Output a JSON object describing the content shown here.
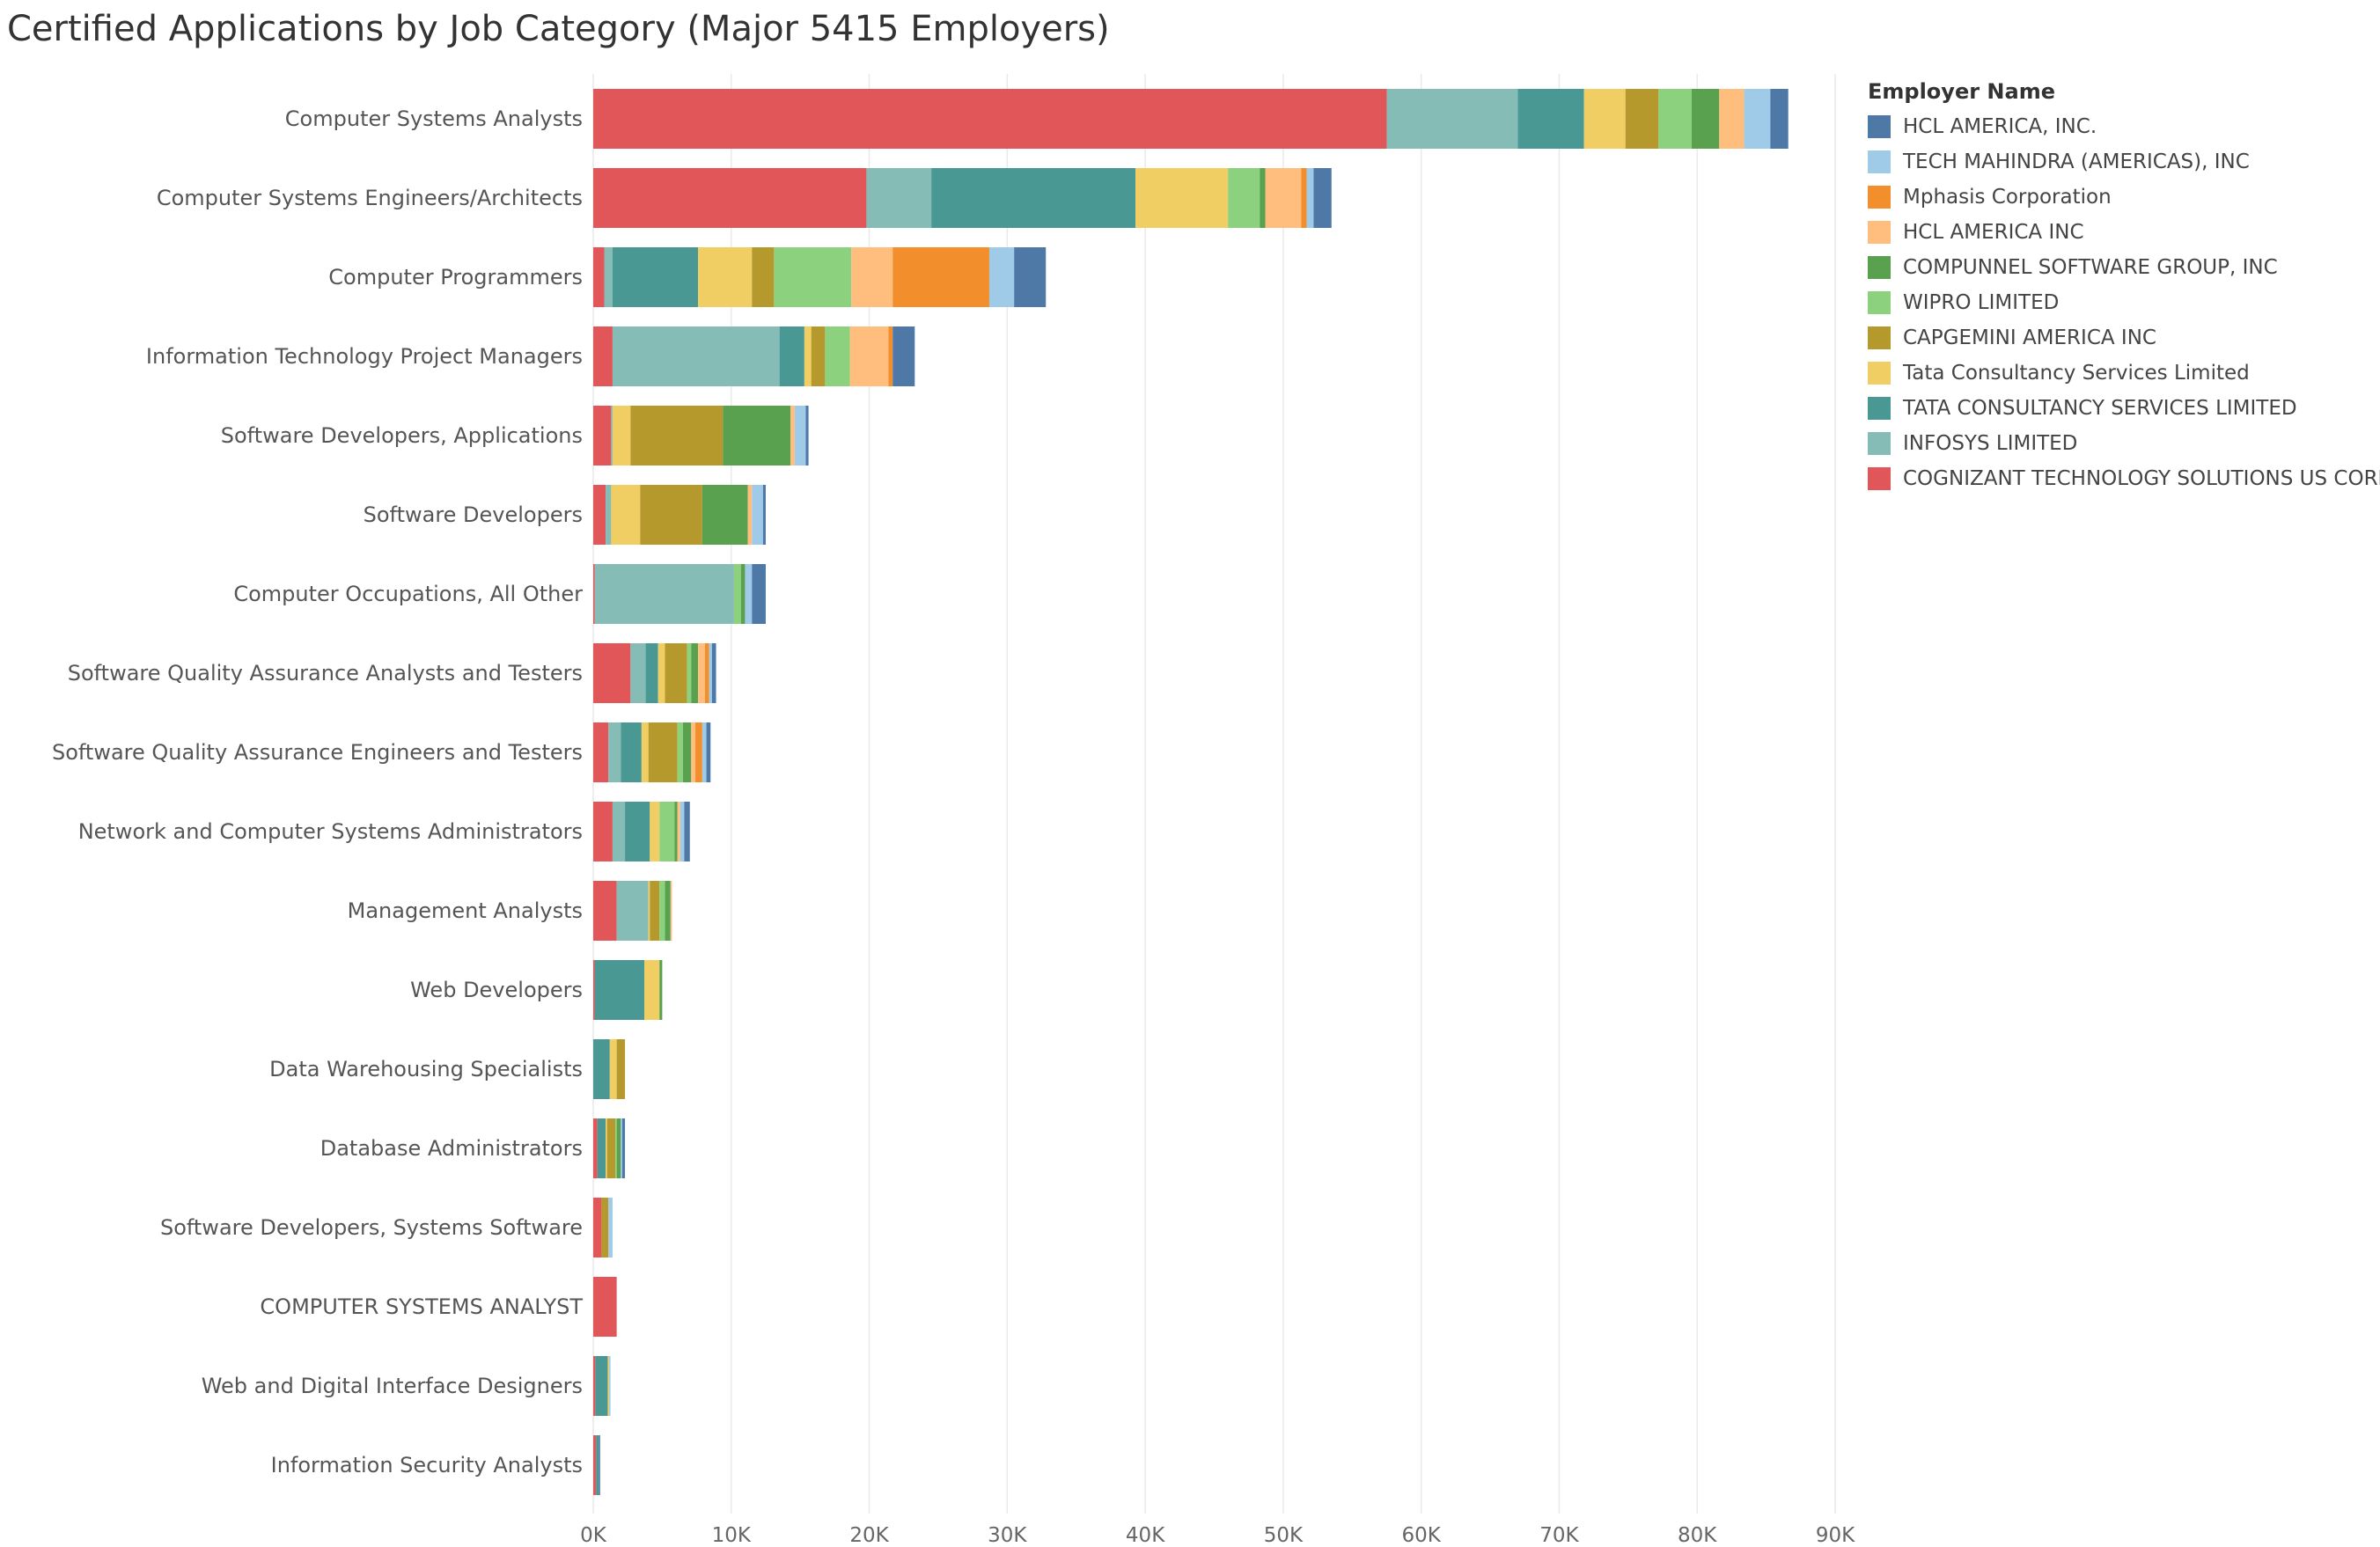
{
  "chart_data": {
    "type": "bar",
    "orientation": "horizontal",
    "stacked": true,
    "title": "Certified Applications by Job Category (Major 5415 Employers)",
    "xlabel": "",
    "ylabel": "",
    "xlim": [
      0,
      90000
    ],
    "x_ticks": [
      0,
      10000,
      20000,
      30000,
      40000,
      50000,
      60000,
      70000,
      80000,
      90000
    ],
    "x_tick_labels": [
      "0K",
      "10K",
      "20K",
      "30K",
      "40K",
      "50K",
      "60K",
      "70K",
      "80K",
      "90K"
    ],
    "legend_title": "Employer Name",
    "legend_position": "right",
    "categories": [
      "Computer Systems Analysts",
      "Computer Systems Engineers/Architects",
      "Computer Programmers",
      "Information Technology Project Managers",
      "Software Developers, Applications",
      "Software Developers",
      "Computer Occupations, All Other",
      "Software Quality Assurance Analysts and Testers",
      "Software Quality Assurance Engineers and Testers",
      "Network and Computer Systems Administrators",
      "Management Analysts",
      "Web Developers",
      "Data Warehousing Specialists",
      "Database Administrators",
      "Software Developers, Systems Software",
      "COMPUTER SYSTEMS ANALYST",
      "Web and Digital Interface Designers",
      "Information Security Analysts"
    ],
    "series": [
      {
        "name": "COGNIZANT TECHNOLOGY SOLUTIONS US CORP",
        "color": "#e15759",
        "values": [
          57500,
          19800,
          800,
          1400,
          1300,
          900,
          100,
          2700,
          1100,
          1400,
          1700,
          100,
          0,
          300,
          600,
          1700,
          150,
          200
        ]
      },
      {
        "name": "INFOSYS LIMITED",
        "color": "#86bcb6",
        "values": [
          9500,
          4700,
          600,
          12100,
          100,
          400,
          10100,
          1100,
          900,
          900,
          2300,
          0,
          0,
          0,
          0,
          0,
          0,
          0
        ]
      },
      {
        "name": "TATA CONSULTANCY SERVICES LIMITED",
        "color": "#499894",
        "values": [
          4800,
          14800,
          6200,
          1800,
          0,
          0,
          0,
          900,
          1500,
          1800,
          0,
          3600,
          1200,
          600,
          0,
          0,
          900,
          200
        ]
      },
      {
        "name": "Tata Consultancy Services Limited",
        "color": "#f1ce63",
        "values": [
          3000,
          6700,
          3900,
          500,
          1300,
          2100,
          0,
          500,
          500,
          700,
          100,
          1100,
          500,
          100,
          0,
          0,
          100,
          0
        ]
      },
      {
        "name": "CAPGEMINI AMERICA INC",
        "color": "#b6992d",
        "values": [
          2400,
          0,
          1600,
          1000,
          6700,
          4500,
          0,
          1600,
          2100,
          0,
          700,
          0,
          600,
          600,
          500,
          0,
          0,
          0
        ]
      },
      {
        "name": "WIPRO LIMITED",
        "color": "#8cd17d",
        "values": [
          2400,
          2300,
          5600,
          1800,
          0,
          0,
          500,
          300,
          400,
          1100,
          400,
          0,
          0,
          100,
          0,
          0,
          0,
          0
        ]
      },
      {
        "name": "COMPUNNEL SOFTWARE GROUP, INC",
        "color": "#59a14f",
        "values": [
          2000,
          400,
          0,
          0,
          4900,
          3300,
          300,
          500,
          600,
          200,
          400,
          200,
          0,
          300,
          0,
          0,
          0,
          0
        ]
      },
      {
        "name": "HCL AMERICA INC",
        "color": "#ffbe7d",
        "values": [
          1800,
          2600,
          3000,
          2800,
          300,
          300,
          0,
          500,
          300,
          200,
          100,
          0,
          0,
          0,
          0,
          0,
          0,
          0
        ]
      },
      {
        "name": "Mphasis Corporation",
        "color": "#f28e2b",
        "values": [
          0,
          400,
          7000,
          300,
          0,
          0,
          0,
          300,
          500,
          0,
          0,
          0,
          0,
          0,
          0,
          0,
          0,
          0
        ]
      },
      {
        "name": "TECH MAHINDRA (AMERICAS), INC",
        "color": "#a0cbe8",
        "values": [
          1900,
          500,
          1800,
          0,
          800,
          800,
          500,
          200,
          300,
          300,
          0,
          0,
          0,
          100,
          300,
          0,
          100,
          0
        ]
      },
      {
        "name": "HCL AMERICA, INC.",
        "color": "#4e79a7",
        "values": [
          1300,
          1300,
          2300,
          1600,
          200,
          200,
          1000,
          300,
          300,
          400,
          0,
          0,
          0,
          200,
          0,
          0,
          0,
          100
        ]
      }
    ]
  }
}
